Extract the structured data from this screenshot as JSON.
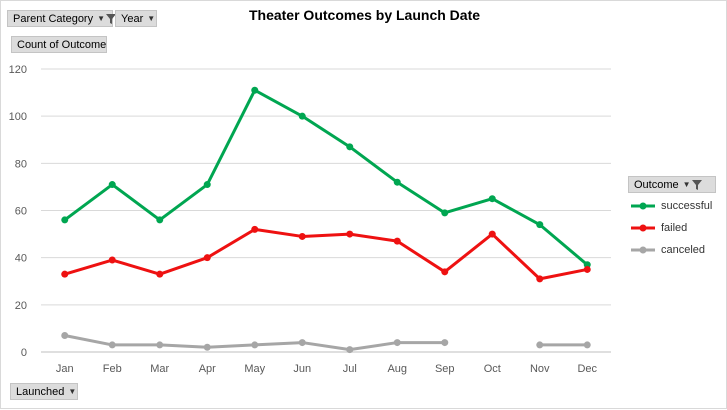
{
  "filters": {
    "parent_category": "Parent Category",
    "year": "Year",
    "value_field": "Count of Outcome",
    "axis_field": "Launched",
    "legend_field": "Outcome"
  },
  "icons": {
    "dropdown": "dropdown-arrow-icon",
    "filter": "filter-funnel-icon"
  },
  "chart_data": {
    "type": "line",
    "title": "Theater Outcomes by Launch Date",
    "xlabel": "",
    "ylabel": "",
    "ylim": [
      0,
      120
    ],
    "yticks": [
      0,
      20,
      40,
      60,
      80,
      100,
      120
    ],
    "grid": true,
    "legend_position": "right",
    "categories": [
      "Jan",
      "Feb",
      "Mar",
      "Apr",
      "May",
      "Jun",
      "Jul",
      "Aug",
      "Sep",
      "Oct",
      "Nov",
      "Dec"
    ],
    "series": [
      {
        "name": "successful",
        "color": "#00a651",
        "values": [
          56,
          71,
          56,
          71,
          111,
          100,
          87,
          72,
          59,
          65,
          54,
          37
        ]
      },
      {
        "name": "failed",
        "color": "#ee1111",
        "values": [
          33,
          39,
          33,
          40,
          52,
          49,
          50,
          47,
          34,
          50,
          31,
          35
        ]
      },
      {
        "name": "canceled",
        "color": "#a6a6a6",
        "values": [
          7,
          3,
          3,
          2,
          3,
          4,
          1,
          4,
          4,
          null,
          3,
          3
        ]
      }
    ]
  }
}
